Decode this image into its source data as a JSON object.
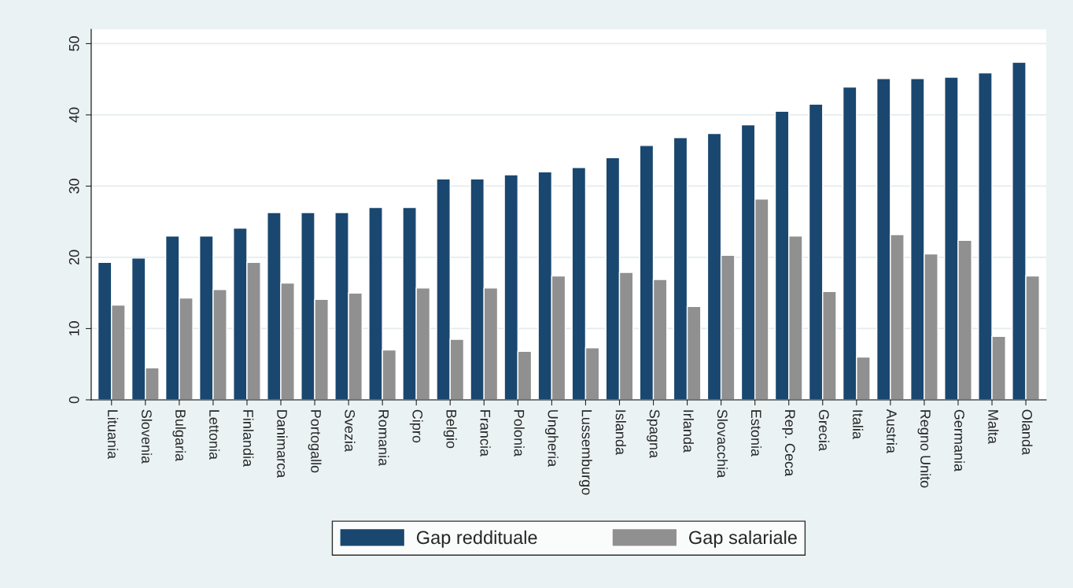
{
  "chart_data": {
    "type": "bar",
    "categories": [
      "Lituania",
      "Slovenia",
      "Bulgaria",
      "Lettonia",
      "Finlandia",
      "Danimarca",
      "Portogallo",
      "Svezia",
      "Romania",
      "Cipro",
      "Belgio",
      "Francia",
      "Polonia",
      "Ungheria",
      "Lussemburgo",
      "Islanda",
      "Spagna",
      "Irlanda",
      "Slovacchia",
      "Estonia",
      "Rep. Ceca",
      "Grecia",
      "Italia",
      "Austria",
      "Regno Unito",
      "Germania",
      "Malta",
      "Olanda"
    ],
    "series": [
      {
        "name": "Gap reddituale",
        "color": "#1a476f",
        "values": [
          19.3,
          19.9,
          23.0,
          23.0,
          24.1,
          26.3,
          26.3,
          26.3,
          27.0,
          27.0,
          31.0,
          31.0,
          31.6,
          32.0,
          32.6,
          34.0,
          35.7,
          36.8,
          37.4,
          38.6,
          40.5,
          41.5,
          43.9,
          45.1,
          45.1,
          45.3,
          45.9,
          47.4
        ]
      },
      {
        "name": "Gap salariale",
        "color": "#909090",
        "values": [
          13.3,
          4.5,
          14.3,
          15.5,
          19.3,
          16.4,
          14.1,
          15.0,
          7.0,
          15.7,
          8.5,
          15.7,
          6.8,
          17.4,
          7.3,
          17.9,
          16.9,
          13.1,
          20.3,
          28.2,
          23.0,
          15.2,
          6.0,
          23.2,
          20.5,
          22.4,
          8.9,
          17.4
        ]
      }
    ],
    "ylim": [
      0,
      52
    ],
    "yticks": [
      0,
      10,
      20,
      30,
      40,
      50
    ],
    "grid": "y",
    "legend": "bottom"
  }
}
